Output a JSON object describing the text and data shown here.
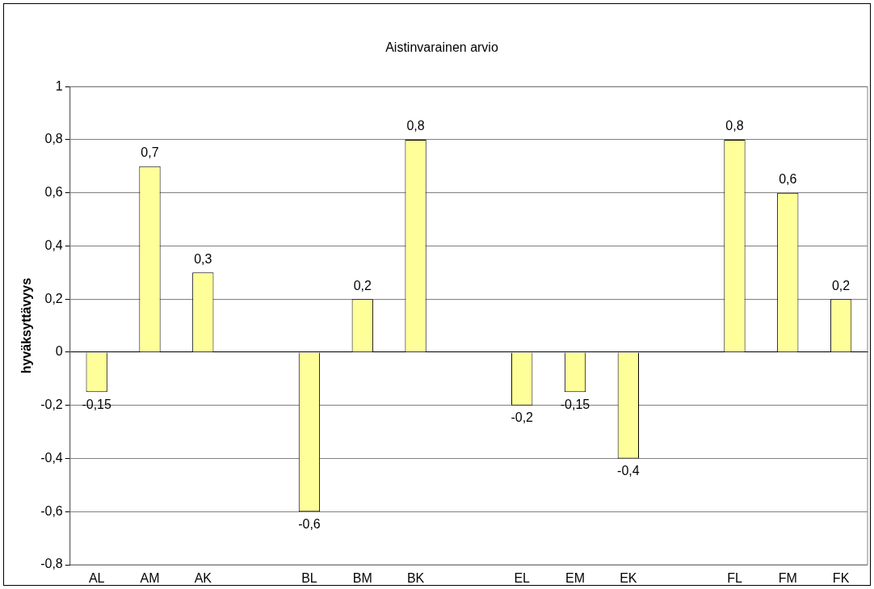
{
  "chart_data": {
    "type": "bar",
    "title": "Aistinvarainen arvio",
    "ylabel": "hyväksyttävyys",
    "categories": [
      "AL",
      "AM",
      "AK",
      null,
      "BL",
      "BM",
      "BK",
      null,
      "EL",
      "EM",
      "EK",
      null,
      "FL",
      "FM",
      "FK"
    ],
    "values": [
      -0.15,
      0.7,
      0.3,
      null,
      -0.6,
      0.2,
      0.8,
      null,
      -0.2,
      -0.15,
      -0.4,
      null,
      0.8,
      0.6,
      0.2
    ],
    "value_labels": [
      "-0,15",
      "0,7",
      "0,3",
      null,
      "-0,6",
      "0,2",
      "0,8",
      null,
      "-0,2",
      "-0,15",
      "-0,4",
      null,
      "0,8",
      "0,6",
      "0,2"
    ],
    "color": "#ffff99",
    "ylim": [
      -0.8,
      1
    ],
    "yticks": [
      {
        "value": -0.8,
        "label": "-0,8"
      },
      {
        "value": -0.6,
        "label": "-0,6"
      },
      {
        "value": -0.4,
        "label": "-0,4"
      },
      {
        "value": -0.2,
        "label": "-0,2"
      },
      0,
      {
        "value": 0.2,
        "label": "0,2"
      },
      {
        "value": 0.4,
        "label": "0,4"
      },
      {
        "value": 0.6,
        "label": "0,6"
      },
      {
        "value": 0.8,
        "label": "0,8"
      },
      1
    ],
    "grid": "y",
    "legend": false
  }
}
